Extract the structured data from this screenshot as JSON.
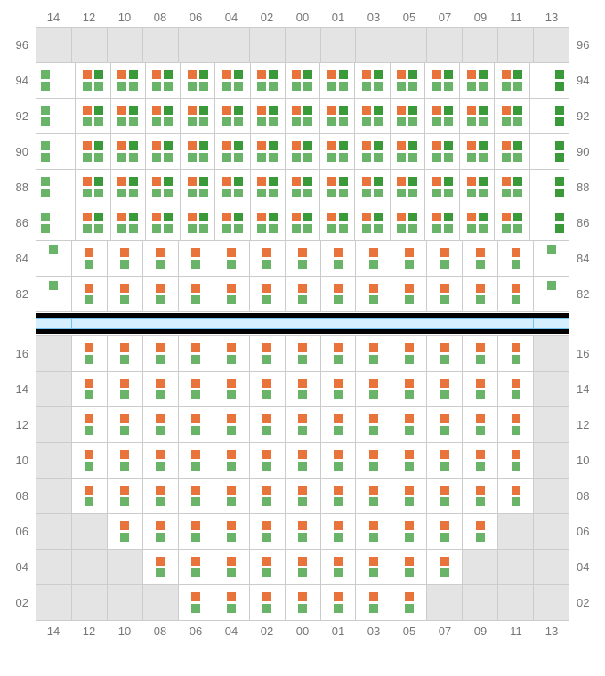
{
  "type": "slot-grid",
  "colors": {
    "orange": "#e8743b",
    "green": "#6ab46a",
    "dark_green": "#3a9a3a",
    "empty_bg": "#e4e4e4",
    "grid_line": "#cccccc",
    "blue_bar_fill": "#d6efff",
    "blue_bar_border": "#73c3f0",
    "black": "#000000",
    "label_text": "#767676"
  },
  "columns": [
    "14",
    "12",
    "10",
    "08",
    "06",
    "04",
    "02",
    "00",
    "01",
    "03",
    "05",
    "07",
    "09",
    "11",
    "13"
  ],
  "top": {
    "row_labels": [
      "96",
      "94",
      "92",
      "90",
      "88",
      "86",
      "84",
      "82"
    ],
    "cells": [
      [
        "E",
        "E",
        "E",
        "E",
        "E",
        "E",
        "E",
        "E",
        "E",
        "E",
        "E",
        "E",
        "E",
        "E",
        "E"
      ],
      [
        "C",
        "A",
        "A",
        "A",
        "A",
        "A",
        "A",
        "A",
        "A",
        "A",
        "A",
        "A",
        "A",
        "A",
        "D"
      ],
      [
        "C",
        "A",
        "A",
        "A",
        "A",
        "A",
        "A",
        "A",
        "A",
        "A",
        "A",
        "A",
        "A",
        "A",
        "D"
      ],
      [
        "C",
        "A",
        "A",
        "A",
        "A",
        "A",
        "A",
        "A",
        "A",
        "A",
        "A",
        "A",
        "A",
        "A",
        "D"
      ],
      [
        "C",
        "A",
        "A",
        "A",
        "A",
        "A",
        "A",
        "A",
        "A",
        "A",
        "A",
        "A",
        "A",
        "A",
        "D"
      ],
      [
        "C",
        "A",
        "A",
        "A",
        "A",
        "A",
        "A",
        "A",
        "A",
        "A",
        "A",
        "A",
        "A",
        "A",
        "D"
      ],
      [
        "G",
        "B",
        "B",
        "B",
        "B",
        "B",
        "B",
        "B",
        "B",
        "B",
        "B",
        "B",
        "B",
        "B",
        "G"
      ],
      [
        "G",
        "B",
        "B",
        "B",
        "B",
        "B",
        "B",
        "B",
        "B",
        "B",
        "B",
        "B",
        "B",
        "B",
        "G"
      ]
    ]
  },
  "blue_segments": [
    1,
    4,
    5,
    4,
    1
  ],
  "bottom": {
    "row_labels": [
      "16",
      "14",
      "12",
      "10",
      "08",
      "06",
      "04",
      "02"
    ],
    "cells": [
      [
        "E",
        "B",
        "B",
        "B",
        "B",
        "B",
        "B",
        "B",
        "B",
        "B",
        "B",
        "B",
        "B",
        "B",
        "E"
      ],
      [
        "E",
        "B",
        "B",
        "B",
        "B",
        "B",
        "B",
        "B",
        "B",
        "B",
        "B",
        "B",
        "B",
        "B",
        "E"
      ],
      [
        "E",
        "B",
        "B",
        "B",
        "B",
        "B",
        "B",
        "B",
        "B",
        "B",
        "B",
        "B",
        "B",
        "B",
        "E"
      ],
      [
        "E",
        "B",
        "B",
        "B",
        "B",
        "B",
        "B",
        "B",
        "B",
        "B",
        "B",
        "B",
        "B",
        "B",
        "E"
      ],
      [
        "E",
        "B",
        "B",
        "B",
        "B",
        "B",
        "B",
        "B",
        "B",
        "B",
        "B",
        "B",
        "B",
        "B",
        "E"
      ],
      [
        "E",
        "E",
        "B",
        "B",
        "B",
        "B",
        "B",
        "B",
        "B",
        "B",
        "B",
        "B",
        "B",
        "E",
        "E"
      ],
      [
        "E",
        "E",
        "E",
        "B",
        "B",
        "B",
        "B",
        "B",
        "B",
        "B",
        "B",
        "B",
        "E",
        "E",
        "E"
      ],
      [
        "E",
        "E",
        "E",
        "E",
        "B",
        "B",
        "B",
        "B",
        "B",
        "B",
        "B",
        "E",
        "E",
        "E",
        "E"
      ]
    ]
  }
}
